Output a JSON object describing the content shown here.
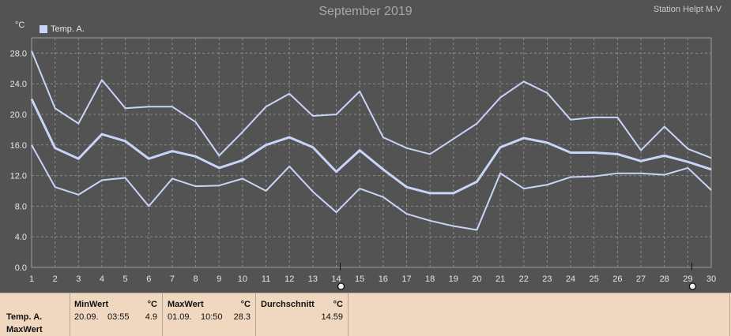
{
  "header": {
    "title": "September 2019",
    "station": "Station Helpt M-V",
    "unit": "°C"
  },
  "legend": {
    "label": "Temp. A.",
    "color": "#c8d4f8"
  },
  "colors": {
    "background": "#535353",
    "plot_border": "#9c9c9c",
    "grid": "#8a8a8a",
    "series": "#c8d4f8",
    "text": "#e6e6e6",
    "footer": "#f0d7bf"
  },
  "chart_data": {
    "type": "line",
    "title": "September 2019",
    "ylabel": "°C",
    "xlabel": "",
    "x": [
      1,
      2,
      3,
      4,
      5,
      6,
      7,
      8,
      9,
      10,
      11,
      12,
      13,
      14,
      15,
      16,
      17,
      18,
      19,
      20,
      21,
      22,
      23,
      24,
      25,
      26,
      27,
      28,
      29,
      30
    ],
    "ylim": [
      0,
      30
    ],
    "yticks": [
      "0.0",
      "4.0",
      "8.0",
      "12.0",
      "16.0",
      "20.0",
      "24.0",
      "28.0"
    ],
    "ytick_values": [
      0,
      4,
      8,
      12,
      16,
      20,
      24,
      28
    ],
    "xticks": [
      "1",
      "2",
      "3",
      "4",
      "5",
      "6",
      "7",
      "8",
      "9",
      "10",
      "11",
      "12",
      "13",
      "14",
      "15",
      "16",
      "17",
      "18",
      "19",
      "20",
      "21",
      "22",
      "23",
      "24",
      "25",
      "26",
      "27",
      "28",
      "29",
      "30"
    ],
    "grid": true,
    "legend_position": "top-left",
    "series": [
      {
        "name": "Temp. A.",
        "role": "max",
        "values": [
          28.3,
          20.8,
          18.8,
          24.5,
          20.8,
          21.0,
          21.0,
          19.0,
          14.6,
          17.7,
          21.0,
          22.7,
          19.8,
          20.0,
          23.0,
          17.0,
          15.6,
          14.8,
          16.8,
          18.8,
          22.2,
          24.3,
          22.8,
          19.3,
          19.6,
          19.6,
          15.3,
          18.4,
          15.5,
          14.3
        ]
      },
      {
        "name": "Temp. A.",
        "role": "mean",
        "values": [
          22.0,
          15.6,
          14.2,
          17.4,
          16.5,
          14.2,
          15.2,
          14.5,
          13.0,
          14.0,
          16.0,
          17.0,
          15.7,
          12.5,
          15.3,
          12.8,
          10.5,
          9.7,
          9.7,
          11.2,
          15.7,
          16.9,
          16.3,
          15.0,
          15.0,
          14.8,
          13.9,
          14.6,
          13.8,
          12.8
        ]
      },
      {
        "name": "Temp. A.",
        "role": "min",
        "values": [
          16.0,
          10.5,
          9.5,
          11.4,
          11.7,
          8.0,
          11.6,
          10.6,
          10.7,
          11.6,
          10.0,
          13.2,
          9.9,
          7.2,
          10.3,
          9.2,
          7.0,
          6.1,
          5.4,
          4.9,
          12.3,
          10.3,
          10.8,
          11.8,
          11.9,
          12.3,
          12.3,
          12.1,
          13.0,
          10.1
        ]
      }
    ],
    "markers_x": [
      14,
      29
    ]
  },
  "footer": {
    "row_label_1": "Temp. A.",
    "row_label_2": "MaxWert",
    "min": {
      "header": "MinWert",
      "unit": "°C",
      "date": "20.09.",
      "time": "03:55",
      "value": "4.9"
    },
    "max": {
      "header": "MaxWert",
      "unit": "°C",
      "date": "01.09.",
      "time": "10:50",
      "value": "28.3"
    },
    "avg": {
      "header": "Durchschnitt",
      "unit": "°C",
      "value": "14.59"
    }
  }
}
